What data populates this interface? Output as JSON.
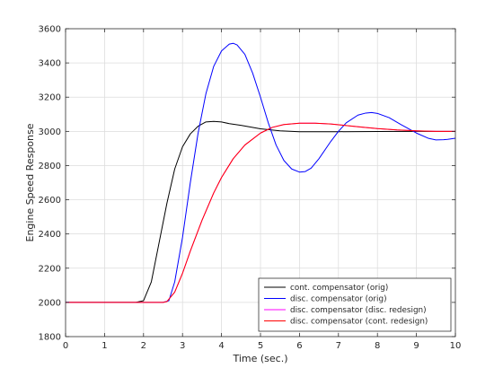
{
  "chart_data": {
    "type": "line",
    "title": "",
    "xlabel": "Time (sec.)",
    "ylabel": "Engine Speed Response",
    "xlim": [
      0,
      10
    ],
    "ylim": [
      1800,
      3600
    ],
    "xticks": [
      0,
      1,
      2,
      3,
      4,
      5,
      6,
      7,
      8,
      9,
      10
    ],
    "yticks": [
      1800,
      2000,
      2200,
      2400,
      2600,
      2800,
      3000,
      3200,
      3400,
      3600
    ],
    "grid": true,
    "legend_position": "bottom-right",
    "series": [
      {
        "name": "cont. compensator (orig)",
        "color": "#000000",
        "x": [
          0,
          0.2,
          1.8,
          2.0,
          2.2,
          2.4,
          2.6,
          2.8,
          3.0,
          3.2,
          3.4,
          3.6,
          3.8,
          4.0,
          4.2,
          4.5,
          5.0,
          5.5,
          6.0,
          7.0,
          8.0,
          9.0,
          10.0
        ],
        "y": [
          2000,
          2000,
          2000,
          2010,
          2120,
          2350,
          2580,
          2780,
          2910,
          2985,
          3030,
          3055,
          3058,
          3055,
          3045,
          3035,
          3015,
          3003,
          2998,
          2998,
          2999,
          3000,
          3000
        ]
      },
      {
        "name": "disc. compensator (orig)",
        "color": "#0000ff",
        "x": [
          0,
          0.2,
          2.0,
          2.5,
          2.65,
          2.8,
          3.0,
          3.2,
          3.4,
          3.6,
          3.8,
          4.0,
          4.2,
          4.3,
          4.4,
          4.6,
          4.8,
          5.0,
          5.2,
          5.4,
          5.6,
          5.8,
          6.0,
          6.15,
          6.3,
          6.5,
          6.8,
          7.0,
          7.2,
          7.5,
          7.7,
          7.85,
          8.0,
          8.3,
          8.6,
          9.0,
          9.3,
          9.5,
          9.7,
          9.8,
          10.0
        ],
        "y": [
          2000,
          2000,
          2000,
          2000,
          2010,
          2120,
          2380,
          2700,
          2990,
          3220,
          3380,
          3470,
          3510,
          3515,
          3505,
          3450,
          3340,
          3200,
          3050,
          2920,
          2830,
          2780,
          2762,
          2765,
          2785,
          2840,
          2940,
          3000,
          3050,
          3095,
          3107,
          3110,
          3105,
          3080,
          3040,
          2990,
          2960,
          2950,
          2951,
          2953,
          2960
        ]
      },
      {
        "name": "disc. compensator (disc. redesign)",
        "color": "#ff00ff",
        "x": [
          0,
          0.2,
          2.0,
          2.5,
          2.6,
          2.8,
          3.0,
          3.2,
          3.5,
          3.8,
          4.0,
          4.3,
          4.6,
          5.0,
          5.3,
          5.6,
          6.0,
          6.4,
          6.8,
          7.2,
          7.6,
          8.0,
          8.5,
          9.0,
          9.5,
          10.0
        ],
        "y": [
          2000,
          2000,
          2000,
          2000,
          2005,
          2060,
          2170,
          2300,
          2480,
          2640,
          2730,
          2840,
          2920,
          2990,
          3023,
          3040,
          3048,
          3048,
          3043,
          3034,
          3025,
          3016,
          3008,
          3003,
          3000,
          3000
        ]
      },
      {
        "name": "disc. compensator (cont. redesign)",
        "color": "#ff0000",
        "x": [
          0,
          0.2,
          2.0,
          2.5,
          2.6,
          2.8,
          3.0,
          3.2,
          3.5,
          3.8,
          4.0,
          4.3,
          4.6,
          5.0,
          5.3,
          5.6,
          6.0,
          6.4,
          6.8,
          7.2,
          7.6,
          8.0,
          8.5,
          9.0,
          9.5,
          10.0
        ],
        "y": [
          2000,
          2000,
          2000,
          2000,
          2005,
          2060,
          2170,
          2300,
          2480,
          2640,
          2730,
          2840,
          2920,
          2990,
          3023,
          3040,
          3048,
          3048,
          3043,
          3034,
          3025,
          3016,
          3008,
          3003,
          3000,
          3000
        ]
      }
    ]
  }
}
